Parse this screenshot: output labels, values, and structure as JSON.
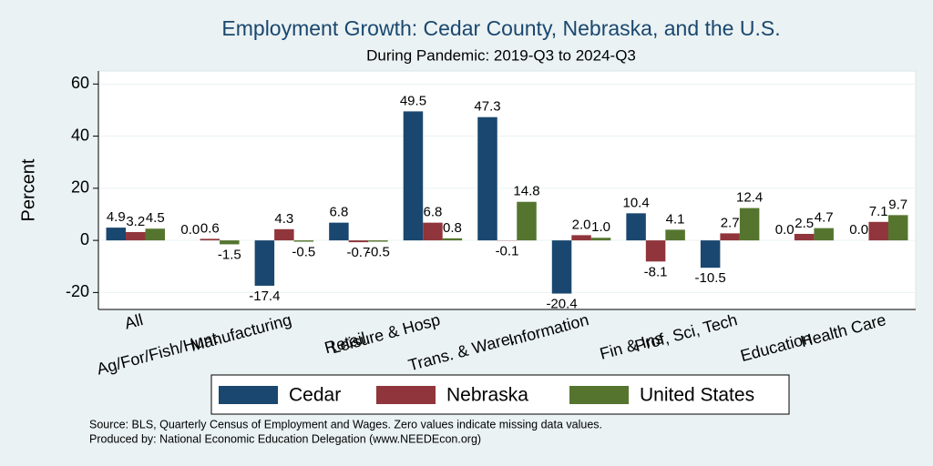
{
  "chart_data": {
    "type": "bar",
    "title": "Employment Growth: Cedar County, Nebraska, and the U.S.",
    "subtitle": "During Pandemic: 2019-Q3 to 2024-Q3",
    "y_label": "Percent",
    "categories": [
      "All",
      "Ag/For/Fish/Hunt",
      "Manufacturing",
      "Retail",
      "Leisure & Hosp",
      "Trans. & Ware.",
      "Information",
      "Fin & Ins",
      "Prof, Sci, Tech",
      "Education",
      "Health Care"
    ],
    "series": [
      {
        "name": "Cedar",
        "color": "#1a476f",
        "values": [
          4.9,
          0,
          -17.4,
          6.8,
          49.5,
          47.3,
          -20.4,
          10.4,
          -10.5,
          0,
          0
        ],
        "value_labels": [
          "4.9",
          "0.0",
          "-17.4",
          "6.8",
          "49.5",
          "47.3",
          "-20.4",
          "10.4",
          "-10.5",
          "0.0",
          "0.0"
        ]
      },
      {
        "name": "Nebraska",
        "color": "#90353b",
        "values": [
          3.2,
          0.6,
          4.3,
          -0.7,
          6.8,
          -0.1,
          2,
          -8.1,
          2.7,
          2.5,
          7.1
        ],
        "value_labels": [
          "3.2",
          "0.6",
          "4.3",
          "-0.7",
          "6.8",
          "-0.1",
          "2.0",
          "-8.1",
          "2.7",
          "2.5",
          "7.1"
        ]
      },
      {
        "name": "United States",
        "color": "#55752f",
        "values": [
          4.5,
          -1.5,
          -0.5,
          -0.5,
          0.8,
          14.8,
          1,
          4.1,
          12.4,
          4.7,
          9.7
        ],
        "value_labels": [
          "4.5",
          "-1.5",
          "-0.5",
          "-0.5",
          "0.8",
          "14.8",
          "1.0",
          "4.1",
          "12.4",
          "4.7",
          "9.7"
        ]
      }
    ],
    "ylim": [
      -26.5,
      65
    ],
    "yticks": [
      -20,
      0,
      20,
      40,
      60
    ],
    "grid": true,
    "notes": [
      "Source: BLS, Quarterly Census of Employment and Wages. Zero values indicate missing data values.",
      "Produced by: National Economic Education Delegation (www.NEEDEcon.org)"
    ]
  }
}
